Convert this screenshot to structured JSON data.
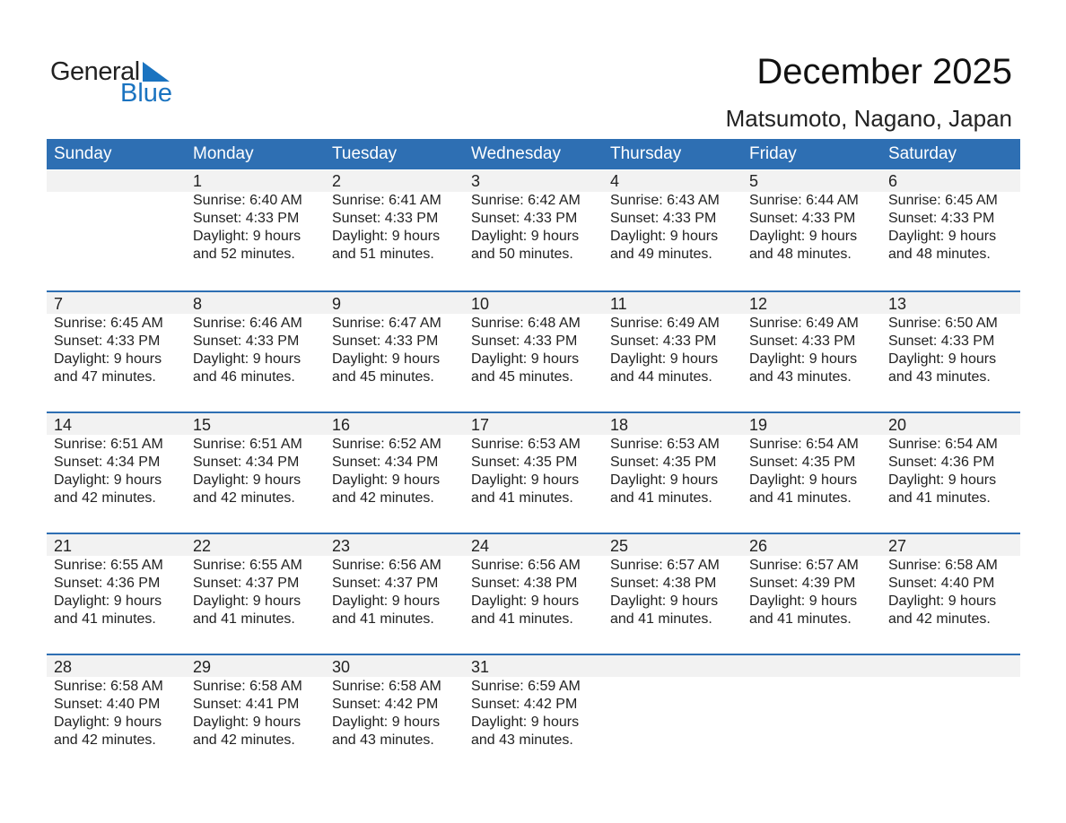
{
  "logo": {
    "text1": "General",
    "text2": "Blue",
    "color": "#1a73c0"
  },
  "title": "December 2025",
  "location": "Matsumoto, Nagano, Japan",
  "colors": {
    "header": "#2e6fb3",
    "strip": "#f2f2f2"
  },
  "weekdays": [
    "Sunday",
    "Monday",
    "Tuesday",
    "Wednesday",
    "Thursday",
    "Friday",
    "Saturday"
  ],
  "weeks": [
    [
      null,
      {
        "day": "1",
        "sunrise": "Sunrise: 6:40 AM",
        "sunset": "Sunset: 4:33 PM",
        "daylight": "Daylight: 9 hours",
        "minutes": "and 52 minutes."
      },
      {
        "day": "2",
        "sunrise": "Sunrise: 6:41 AM",
        "sunset": "Sunset: 4:33 PM",
        "daylight": "Daylight: 9 hours",
        "minutes": "and 51 minutes."
      },
      {
        "day": "3",
        "sunrise": "Sunrise: 6:42 AM",
        "sunset": "Sunset: 4:33 PM",
        "daylight": "Daylight: 9 hours",
        "minutes": "and 50 minutes."
      },
      {
        "day": "4",
        "sunrise": "Sunrise: 6:43 AM",
        "sunset": "Sunset: 4:33 PM",
        "daylight": "Daylight: 9 hours",
        "minutes": "and 49 minutes."
      },
      {
        "day": "5",
        "sunrise": "Sunrise: 6:44 AM",
        "sunset": "Sunset: 4:33 PM",
        "daylight": "Daylight: 9 hours",
        "minutes": "and 48 minutes."
      },
      {
        "day": "6",
        "sunrise": "Sunrise: 6:45 AM",
        "sunset": "Sunset: 4:33 PM",
        "daylight": "Daylight: 9 hours",
        "minutes": "and 48 minutes."
      }
    ],
    [
      {
        "day": "7",
        "sunrise": "Sunrise: 6:45 AM",
        "sunset": "Sunset: 4:33 PM",
        "daylight": "Daylight: 9 hours",
        "minutes": "and 47 minutes."
      },
      {
        "day": "8",
        "sunrise": "Sunrise: 6:46 AM",
        "sunset": "Sunset: 4:33 PM",
        "daylight": "Daylight: 9 hours",
        "minutes": "and 46 minutes."
      },
      {
        "day": "9",
        "sunrise": "Sunrise: 6:47 AM",
        "sunset": "Sunset: 4:33 PM",
        "daylight": "Daylight: 9 hours",
        "minutes": "and 45 minutes."
      },
      {
        "day": "10",
        "sunrise": "Sunrise: 6:48 AM",
        "sunset": "Sunset: 4:33 PM",
        "daylight": "Daylight: 9 hours",
        "minutes": "and 45 minutes."
      },
      {
        "day": "11",
        "sunrise": "Sunrise: 6:49 AM",
        "sunset": "Sunset: 4:33 PM",
        "daylight": "Daylight: 9 hours",
        "minutes": "and 44 minutes."
      },
      {
        "day": "12",
        "sunrise": "Sunrise: 6:49 AM",
        "sunset": "Sunset: 4:33 PM",
        "daylight": "Daylight: 9 hours",
        "minutes": "and 43 minutes."
      },
      {
        "day": "13",
        "sunrise": "Sunrise: 6:50 AM",
        "sunset": "Sunset: 4:33 PM",
        "daylight": "Daylight: 9 hours",
        "minutes": "and 43 minutes."
      }
    ],
    [
      {
        "day": "14",
        "sunrise": "Sunrise: 6:51 AM",
        "sunset": "Sunset: 4:34 PM",
        "daylight": "Daylight: 9 hours",
        "minutes": "and 42 minutes."
      },
      {
        "day": "15",
        "sunrise": "Sunrise: 6:51 AM",
        "sunset": "Sunset: 4:34 PM",
        "daylight": "Daylight: 9 hours",
        "minutes": "and 42 minutes."
      },
      {
        "day": "16",
        "sunrise": "Sunrise: 6:52 AM",
        "sunset": "Sunset: 4:34 PM",
        "daylight": "Daylight: 9 hours",
        "minutes": "and 42 minutes."
      },
      {
        "day": "17",
        "sunrise": "Sunrise: 6:53 AM",
        "sunset": "Sunset: 4:35 PM",
        "daylight": "Daylight: 9 hours",
        "minutes": "and 41 minutes."
      },
      {
        "day": "18",
        "sunrise": "Sunrise: 6:53 AM",
        "sunset": "Sunset: 4:35 PM",
        "daylight": "Daylight: 9 hours",
        "minutes": "and 41 minutes."
      },
      {
        "day": "19",
        "sunrise": "Sunrise: 6:54 AM",
        "sunset": "Sunset: 4:35 PM",
        "daylight": "Daylight: 9 hours",
        "minutes": "and 41 minutes."
      },
      {
        "day": "20",
        "sunrise": "Sunrise: 6:54 AM",
        "sunset": "Sunset: 4:36 PM",
        "daylight": "Daylight: 9 hours",
        "minutes": "and 41 minutes."
      }
    ],
    [
      {
        "day": "21",
        "sunrise": "Sunrise: 6:55 AM",
        "sunset": "Sunset: 4:36 PM",
        "daylight": "Daylight: 9 hours",
        "minutes": "and 41 minutes."
      },
      {
        "day": "22",
        "sunrise": "Sunrise: 6:55 AM",
        "sunset": "Sunset: 4:37 PM",
        "daylight": "Daylight: 9 hours",
        "minutes": "and 41 minutes."
      },
      {
        "day": "23",
        "sunrise": "Sunrise: 6:56 AM",
        "sunset": "Sunset: 4:37 PM",
        "daylight": "Daylight: 9 hours",
        "minutes": "and 41 minutes."
      },
      {
        "day": "24",
        "sunrise": "Sunrise: 6:56 AM",
        "sunset": "Sunset: 4:38 PM",
        "daylight": "Daylight: 9 hours",
        "minutes": "and 41 minutes."
      },
      {
        "day": "25",
        "sunrise": "Sunrise: 6:57 AM",
        "sunset": "Sunset: 4:38 PM",
        "daylight": "Daylight: 9 hours",
        "minutes": "and 41 minutes."
      },
      {
        "day": "26",
        "sunrise": "Sunrise: 6:57 AM",
        "sunset": "Sunset: 4:39 PM",
        "daylight": "Daylight: 9 hours",
        "minutes": "and 41 minutes."
      },
      {
        "day": "27",
        "sunrise": "Sunrise: 6:58 AM",
        "sunset": "Sunset: 4:40 PM",
        "daylight": "Daylight: 9 hours",
        "minutes": "and 42 minutes."
      }
    ],
    [
      {
        "day": "28",
        "sunrise": "Sunrise: 6:58 AM",
        "sunset": "Sunset: 4:40 PM",
        "daylight": "Daylight: 9 hours",
        "minutes": "and 42 minutes."
      },
      {
        "day": "29",
        "sunrise": "Sunrise: 6:58 AM",
        "sunset": "Sunset: 4:41 PM",
        "daylight": "Daylight: 9 hours",
        "minutes": "and 42 minutes."
      },
      {
        "day": "30",
        "sunrise": "Sunrise: 6:58 AM",
        "sunset": "Sunset: 4:42 PM",
        "daylight": "Daylight: 9 hours",
        "minutes": "and 43 minutes."
      },
      {
        "day": "31",
        "sunrise": "Sunrise: 6:59 AM",
        "sunset": "Sunset: 4:42 PM",
        "daylight": "Daylight: 9 hours",
        "minutes": "and 43 minutes."
      },
      null,
      null,
      null
    ]
  ]
}
